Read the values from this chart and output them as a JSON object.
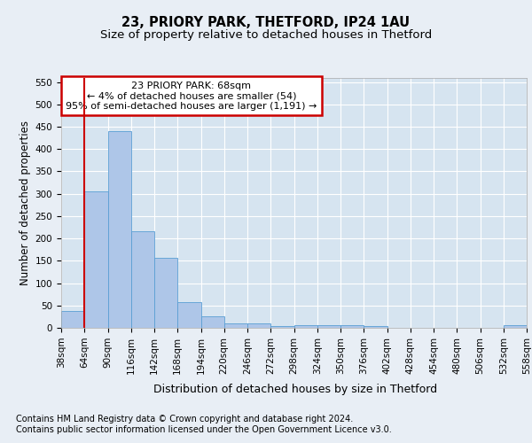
{
  "title_line1": "23, PRIORY PARK, THETFORD, IP24 1AU",
  "title_line2": "Size of property relative to detached houses in Thetford",
  "xlabel": "Distribution of detached houses by size in Thetford",
  "ylabel": "Number of detached properties",
  "footer_line1": "Contains HM Land Registry data © Crown copyright and database right 2024.",
  "footer_line2": "Contains public sector information licensed under the Open Government Licence v3.0.",
  "annotation_line1": "23 PRIORY PARK: 68sqm",
  "annotation_line2": "← 4% of detached houses are smaller (54)",
  "annotation_line3": "95% of semi-detached houses are larger (1,191) →",
  "bar_values": [
    38,
    305,
    441,
    216,
    157,
    57,
    25,
    10,
    10,
    3,
    5,
    6,
    5,
    4,
    0,
    0,
    0,
    0,
    0,
    5
  ],
  "bin_labels": [
    "38sqm",
    "64sqm",
    "90sqm",
    "116sqm",
    "142sqm",
    "168sqm",
    "194sqm",
    "220sqm",
    "246sqm",
    "272sqm",
    "298sqm",
    "324sqm",
    "350sqm",
    "376sqm",
    "402sqm",
    "428sqm",
    "454sqm",
    "480sqm",
    "506sqm",
    "532sqm",
    "558sqm"
  ],
  "bar_color": "#aec6e8",
  "bar_edge_color": "#5a9fd4",
  "ylim": [
    0,
    560
  ],
  "yticks": [
    0,
    50,
    100,
    150,
    200,
    250,
    300,
    350,
    400,
    450,
    500,
    550
  ],
  "bg_color": "#e8eef5",
  "plot_bg_color": "#d6e4f0",
  "grid_color": "#ffffff",
  "annotation_box_color": "#ffffff",
  "annotation_box_edge": "#cc0000",
  "red_line_color": "#cc0000",
  "title_fontsize": 10.5,
  "subtitle_fontsize": 9.5,
  "ylabel_fontsize": 8.5,
  "xlabel_fontsize": 9,
  "tick_fontsize": 7.5,
  "annotation_fontsize": 8,
  "footer_fontsize": 7
}
